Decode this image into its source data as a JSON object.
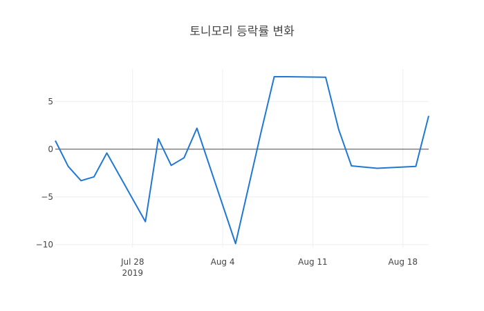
{
  "chart_data": {
    "type": "line",
    "title": "토니모리 등락률 변화",
    "xlabel": "",
    "ylabel": "",
    "x": [
      "2019-07-22",
      "2019-07-23",
      "2019-07-24",
      "2019-07-25",
      "2019-07-26",
      "2019-07-29",
      "2019-07-30",
      "2019-07-31",
      "2019-08-01",
      "2019-08-02",
      "2019-08-05",
      "2019-08-06",
      "2019-08-07",
      "2019-08-08",
      "2019-08-09",
      "2019-08-12",
      "2019-08-13",
      "2019-08-14",
      "2019-08-16",
      "2019-08-19",
      "2019-08-20"
    ],
    "series": [
      {
        "values": [
          0.9,
          -1.8,
          -3.3,
          -2.9,
          -0.4,
          -7.6,
          1.1,
          -1.7,
          -0.9,
          2.2,
          -9.9,
          -4.0,
          1.9,
          7.6,
          7.6,
          7.55,
          2.1,
          -1.75,
          -2.0,
          -1.8,
          3.5
        ],
        "color": "#1f77d4"
      }
    ],
    "xlim": [
      "2019-07-22",
      "2019-08-20"
    ],
    "ylim": [
      -10.3,
      8.4
    ],
    "yticks": [
      5,
      0,
      -5,
      -10
    ],
    "ytick_labels": [
      "5",
      "0",
      "−5",
      "−10"
    ],
    "xticks": [
      "2019-07-28",
      "2019-08-04",
      "2019-08-11",
      "2019-08-18"
    ],
    "xtick_labels": [
      "Jul 28",
      "Aug 4",
      "Aug 11",
      "Aug 18"
    ],
    "xtick_year_label": "2019",
    "grid": true,
    "zero_line": true
  }
}
